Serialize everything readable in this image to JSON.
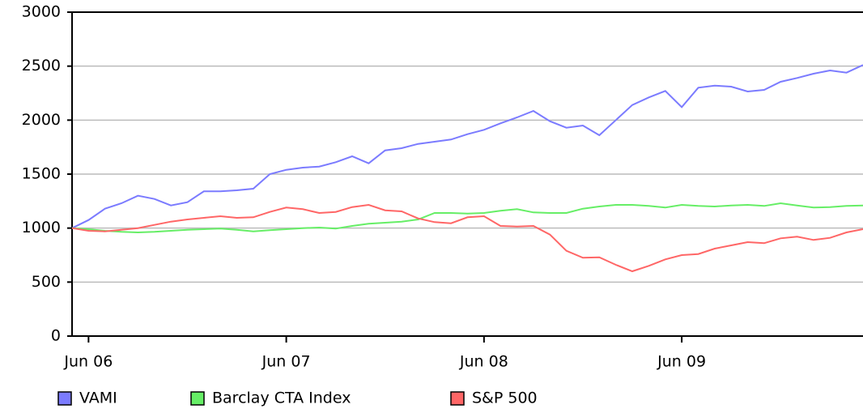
{
  "chart_data": {
    "type": "line",
    "x": [
      null,
      "Jun 06",
      null,
      null,
      null,
      null,
      null,
      null,
      null,
      null,
      null,
      null,
      null,
      "Jun 07",
      null,
      null,
      null,
      null,
      null,
      null,
      null,
      null,
      null,
      null,
      null,
      "Jun 08",
      null,
      null,
      null,
      null,
      null,
      null,
      null,
      null,
      null,
      null,
      null,
      "Jun 09",
      null,
      null,
      null,
      null,
      null,
      null,
      null,
      null,
      null,
      null,
      null
    ],
    "series": [
      {
        "name": "VAMI",
        "color": "#7b7bff",
        "values": [
          1000,
          1075,
          1180,
          1230,
          1300,
          1270,
          1210,
          1240,
          1340,
          1340,
          1350,
          1365,
          1500,
          1540,
          1560,
          1570,
          1610,
          1665,
          1600,
          1720,
          1740,
          1780,
          1800,
          1820,
          1870,
          1910,
          1970,
          2025,
          2085,
          1990,
          1930,
          1950,
          1860,
          2000,
          2140,
          2210,
          2270,
          2120,
          2300,
          2320,
          2310,
          2265,
          2280,
          2355,
          2390,
          2430,
          2460,
          2440,
          2510
        ]
      },
      {
        "name": "Barclay CTA Index",
        "color": "#66ee66",
        "values": [
          1000,
          990,
          975,
          965,
          960,
          965,
          975,
          985,
          990,
          995,
          985,
          970,
          980,
          990,
          1000,
          1005,
          995,
          1020,
          1040,
          1050,
          1060,
          1080,
          1140,
          1140,
          1135,
          1140,
          1160,
          1175,
          1145,
          1140,
          1140,
          1180,
          1200,
          1215,
          1215,
          1205,
          1190,
          1215,
          1205,
          1200,
          1210,
          1215,
          1205,
          1230,
          1210,
          1190,
          1195,
          1205,
          1210
        ]
      },
      {
        "name": "S&P 500",
        "color": "#ff6666",
        "values": [
          1000,
          975,
          970,
          985,
          1000,
          1030,
          1060,
          1080,
          1095,
          1110,
          1095,
          1100,
          1150,
          1190,
          1175,
          1140,
          1150,
          1195,
          1215,
          1165,
          1155,
          1090,
          1055,
          1045,
          1100,
          1110,
          1020,
          1015,
          1020,
          940,
          790,
          725,
          730,
          660,
          600,
          650,
          710,
          750,
          760,
          810,
          840,
          870,
          860,
          905,
          920,
          890,
          910,
          960,
          990
        ]
      }
    ],
    "ylim": [
      0,
      3000
    ],
    "yticks": [
      0,
      500,
      1000,
      1500,
      2000,
      2500,
      3000
    ],
    "grid": true,
    "legend": "bottom"
  }
}
